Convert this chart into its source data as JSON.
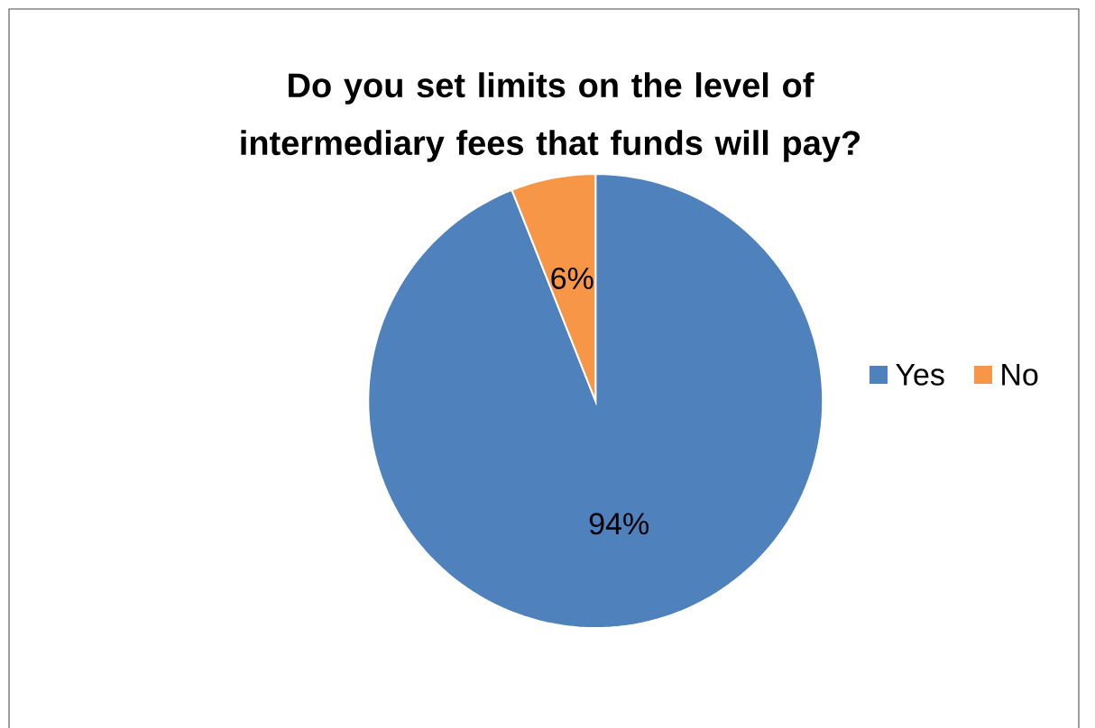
{
  "chart_data": {
    "type": "pie",
    "title": "Do you set limits on the level of intermediary fees that funds will pay?",
    "categories": [
      "Yes",
      "No"
    ],
    "values": [
      94,
      6
    ],
    "colors": [
      "#4f81bd",
      "#f79646"
    ],
    "value_labels": [
      "94%",
      "6%"
    ],
    "legend": "right"
  }
}
